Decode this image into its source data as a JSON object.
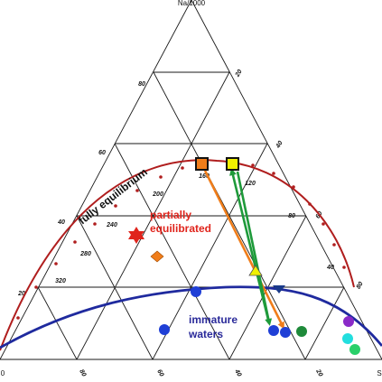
{
  "apex_labels": {
    "top": "Na/1000",
    "left": "0",
    "right": "S"
  },
  "left_ticks": [
    "80",
    "60",
    "40",
    "20"
  ],
  "right_ticks": [
    "20",
    "40",
    "60",
    "80"
  ],
  "bottom_ticks": [
    "80",
    "60",
    "40",
    "20"
  ],
  "curve_labels": [
    "160",
    "200",
    "240",
    "280",
    "320",
    "120",
    "80",
    "40"
  ],
  "annotations": {
    "fully": "fully equilibrium",
    "partially_1": "partially",
    "partially_2": "equilibrated",
    "immature_1": "immature",
    "immature_2": "waters"
  },
  "colors": {
    "grid": "#1a1a1a",
    "equilibrium_curve": "#b01e1e",
    "immaturity_curve": "#1f2a9e",
    "partial_text": "#e0241c",
    "immature_text": "#2a2a9a",
    "orange": "#f07d1a",
    "green": "#1e9a3a",
    "yellow": "#f0f000",
    "navy": "#1a3a8a",
    "blue_point": "#1f3fd6"
  }
}
